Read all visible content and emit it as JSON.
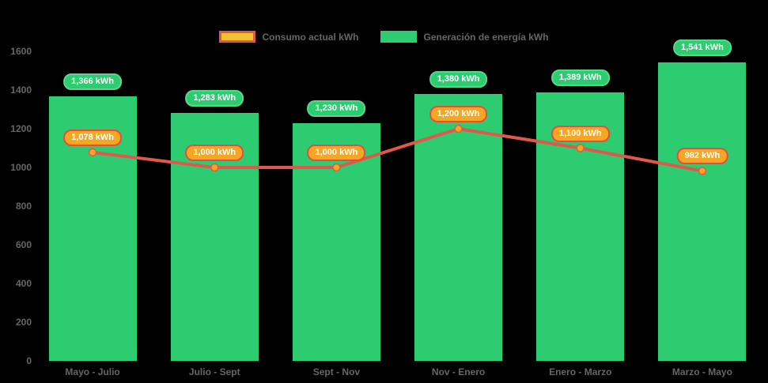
{
  "chart_data": {
    "type": "bar",
    "combo": "bar+line",
    "title": "",
    "categories": [
      "Mayo - Julio",
      "Julio - Sept",
      "Sept - Nov",
      "Nov - Enero",
      "Enero - Marzo",
      "Marzo - Mayo"
    ],
    "series": [
      {
        "name": "Generación de energía kWh",
        "type": "bar",
        "values": [
          1366,
          1283,
          1230,
          1380,
          1389,
          1541
        ],
        "labels": [
          "1,366 kWh",
          "1,283 kWh",
          "1,230 kWh",
          "1,380 kWh",
          "1,389 kWh",
          "1,541 kWh"
        ],
        "color": "#2ecc71",
        "badge_border": "#58d68d"
      },
      {
        "name": "Consumo actual kWh",
        "type": "line",
        "values": [
          1078,
          1000,
          1000,
          1200,
          1100,
          982
        ],
        "labels": [
          "1,078 kWh",
          "1,000 kWh",
          "1,000 kWh",
          "1,200 kWh",
          "1,100 kWh",
          "982 kWh"
        ],
        "color": "#e2574c",
        "point_fill": "#f5a623",
        "badge_fill": "#f5a623",
        "badge_border": "#e74c3c",
        "legend_swatch_fill": "#f2c230",
        "legend_swatch_border": "#e2574c"
      }
    ],
    "xlabel": "",
    "ylabel": "",
    "ylim": [
      0,
      1600
    ],
    "y_ticks": [
      0,
      200,
      400,
      600,
      800,
      1000,
      1200,
      1400,
      1600
    ],
    "grid": false,
    "legend_position": "top",
    "axis_text_color": "#666666",
    "background": "#000000"
  }
}
